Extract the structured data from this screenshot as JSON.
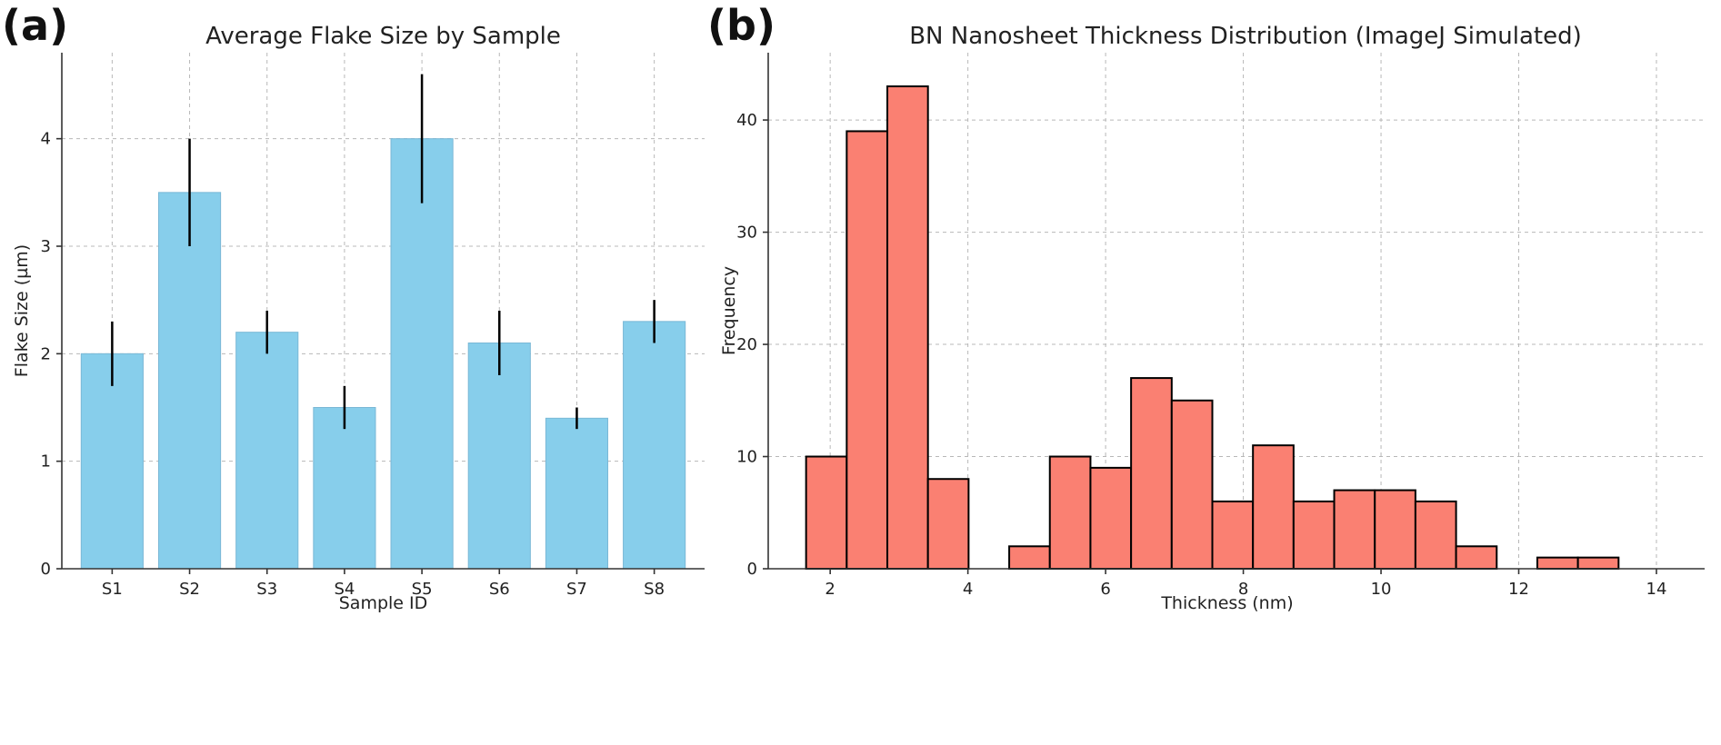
{
  "chart_data": [
    {
      "panel_label": "(a)",
      "type": "bar",
      "title": "Average Flake Size by Sample",
      "xlabel": "Sample ID",
      "ylabel": "Flake Size (µm)",
      "categories": [
        "S1",
        "S2",
        "S3",
        "S4",
        "S5",
        "S6",
        "S7",
        "S8"
      ],
      "values": [
        2.0,
        3.5,
        2.2,
        1.5,
        4.0,
        2.1,
        1.4,
        2.3
      ],
      "errors": [
        0.3,
        0.5,
        0.2,
        0.2,
        0.6,
        0.3,
        0.1,
        0.2
      ],
      "ylim": [
        0,
        4.8
      ],
      "yticks": [
        0,
        1,
        2,
        3,
        4
      ],
      "grid": true,
      "color": "#87CEEB",
      "error_color": "#000000"
    },
    {
      "panel_label": "(b)",
      "type": "bar",
      "subtype": "histogram",
      "title": "BN Nanosheet Thickness Distribution (ImageJ Simulated)",
      "xlabel": "Thickness (nm)",
      "ylabel": "Frequency",
      "bin_start": 1.65,
      "bin_width": 0.59,
      "counts": [
        10,
        39,
        43,
        8,
        0,
        2,
        10,
        9,
        17,
        15,
        6,
        11,
        6,
        7,
        7,
        6,
        2,
        0,
        1,
        1
      ],
      "xlim": [
        1.1,
        14.7
      ],
      "ylim": [
        0,
        46
      ],
      "xticks": [
        2,
        4,
        6,
        8,
        10,
        12,
        14
      ],
      "yticks": [
        0,
        10,
        20,
        30,
        40
      ],
      "grid": true,
      "color": "#FA8072",
      "edge_color": "#000000"
    }
  ]
}
